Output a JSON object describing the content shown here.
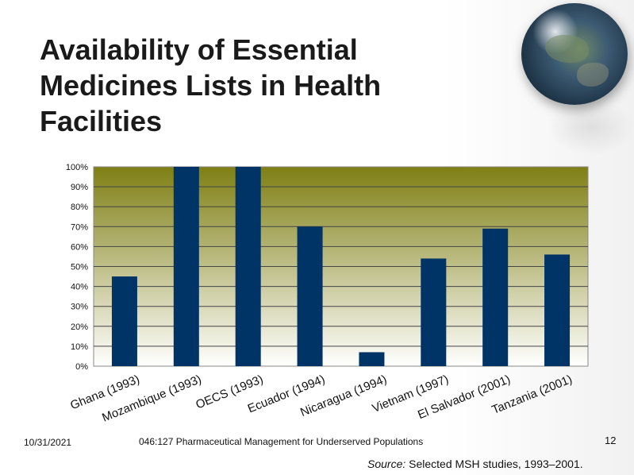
{
  "title": "Availability of Essential\nMedicines Lists in Health\nFacilities",
  "footer": {
    "date": "10/31/2021",
    "course": "046:127 Pharmaceutical Management for Underserved Populations",
    "page": "12"
  },
  "source": {
    "label": "Source:",
    "text": " Selected MSH studies, 1993–2001."
  },
  "colors": {
    "bar": "#003366",
    "plot_top": "#7f7f14",
    "plot_bottom": "#ffffff"
  },
  "chart_data": {
    "type": "bar",
    "title": "",
    "xlabel": "",
    "ylabel": "",
    "ylim": [
      0,
      100
    ],
    "y_ticks": [
      "0%",
      "10%",
      "20%",
      "30%",
      "40%",
      "50%",
      "60%",
      "70%",
      "80%",
      "90%",
      "100%"
    ],
    "grid": true,
    "categories": [
      "Ghana (1993)",
      "Mozambique (1993)",
      "OECS (1993)",
      "Ecuador (1994)",
      "Nicaragua (1994)",
      "Vietnam (1997)",
      "El Salvador (2001)",
      "Tanzania (2001)"
    ],
    "values": [
      45,
      100,
      100,
      70,
      7,
      54,
      69,
      56
    ]
  }
}
